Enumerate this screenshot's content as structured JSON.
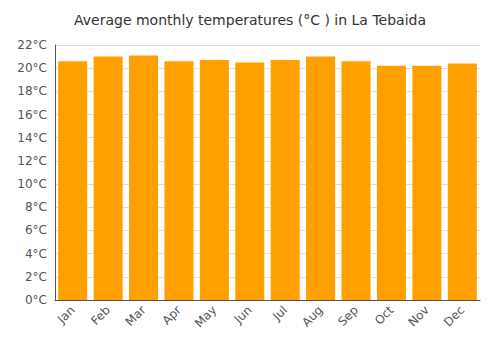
{
  "chart_data": {
    "type": "bar",
    "title": "Average monthly temperatures (°C ) in La Tebaida",
    "categories": [
      "Jan",
      "Feb",
      "Mar",
      "Apr",
      "May",
      "Jun",
      "Jul",
      "Aug",
      "Sep",
      "Oct",
      "Nov",
      "Dec"
    ],
    "values": [
      20.6,
      21.0,
      21.1,
      20.6,
      20.7,
      20.5,
      20.7,
      21.0,
      20.6,
      20.2,
      20.2,
      20.4
    ],
    "color": "#FFA000",
    "ylim": [
      0,
      22
    ],
    "yticks": [
      {
        "value": 0,
        "label": "0°C"
      },
      {
        "value": 2,
        "label": "2°C"
      },
      {
        "value": 4,
        "label": "4°C"
      },
      {
        "value": 6,
        "label": "6°C"
      },
      {
        "value": 8,
        "label": "8°C"
      },
      {
        "value": 10,
        "label": "10°C"
      },
      {
        "value": 12,
        "label": "12°C"
      },
      {
        "value": 14,
        "label": "14°C"
      },
      {
        "value": 16,
        "label": "16°C"
      },
      {
        "value": 18,
        "label": "18°C"
      },
      {
        "value": 20,
        "label": "20°C"
      },
      {
        "value": 22,
        "label": "22°C"
      }
    ],
    "grid": true
  }
}
